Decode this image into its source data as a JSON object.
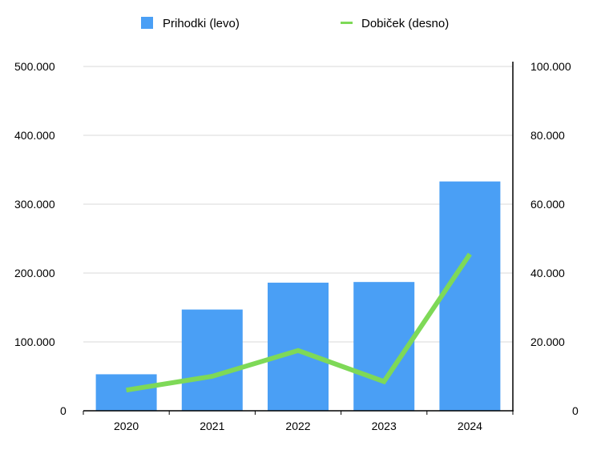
{
  "chart_data": {
    "type": "bar",
    "categories": [
      "2020",
      "2021",
      "2022",
      "2023",
      "2024"
    ],
    "series": [
      {
        "name": "Prihodki (levo)",
        "type": "bar",
        "axis": "left",
        "color": "#4a9ff5",
        "values": [
          53000,
          147000,
          186000,
          187000,
          333000
        ]
      },
      {
        "name": "Dobiček (desno)",
        "type": "line",
        "axis": "right",
        "color": "#7ed957",
        "values": [
          6000,
          10000,
          17500,
          8500,
          45500
        ]
      }
    ],
    "left_axis": {
      "ylim": [
        0,
        500000
      ],
      "ticks": [
        0,
        100000,
        200000,
        300000,
        400000,
        500000
      ],
      "tick_labels": [
        "0",
        "100.000",
        "200.000",
        "300.000",
        "400.000",
        "500.000"
      ]
    },
    "right_axis": {
      "ylim": [
        0,
        100000
      ],
      "ticks": [
        0,
        20000,
        40000,
        60000,
        80000,
        100000
      ],
      "tick_labels": [
        "0",
        "20.000",
        "40.000",
        "60.000",
        "80.000",
        "100.000"
      ]
    },
    "grid": true,
    "legend_position": "top"
  }
}
